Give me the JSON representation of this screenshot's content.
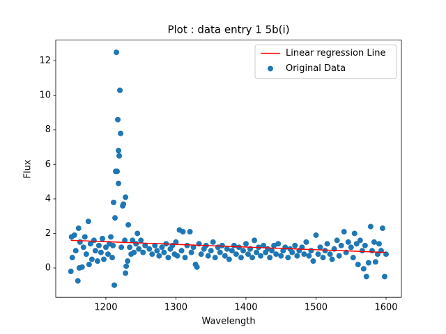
{
  "chart_data": {
    "type": "scatter",
    "title": "Plot : data entry 1 5b(i)",
    "x_label": "Wavelength",
    "y_label": "Flux",
    "xlim": [
      1128.4,
      1621.9
    ],
    "ylim": [
      -1.7,
      13.21
    ],
    "xticks": [
      1200,
      1300,
      1400,
      1500,
      1600
    ],
    "yticks": [
      0,
      2,
      4,
      6,
      8,
      10,
      12
    ],
    "legend": "upper right",
    "series": [
      {
        "name": "Linear regression Line",
        "type": "line",
        "color": "red",
        "x": [
          1150,
          1600
        ],
        "values": [
          1.6,
          0.9
        ]
      },
      {
        "name": "Original Data",
        "type": "scatter",
        "color": "#1f77b4",
        "x": [
          1150,
          1151,
          1152,
          1155,
          1157,
          1160,
          1161,
          1162,
          1163,
          1166,
          1168,
          1170,
          1172,
          1175,
          1176,
          1178,
          1180,
          1183,
          1185,
          1188,
          1190,
          1193,
          1195,
          1197,
          1200,
          1203,
          1205,
          1207,
          1209,
          1210,
          1211,
          1212,
          1213,
          1214,
          1215,
          1216,
          1217,
          1218,
          1219,
          1218,
          1220,
          1221,
          1222,
          1224,
          1225,
          1227,
          1228,
          1228,
          1229,
          1231,
          1232,
          1234,
          1236,
          1238,
          1240,
          1243,
          1245,
          1247,
          1250,
          1253,
          1256,
          1262,
          1266,
          1270,
          1273,
          1276,
          1280,
          1283,
          1286,
          1289,
          1292,
          1295,
          1298,
          1300,
          1302,
          1305,
          1308,
          1310,
          1313,
          1316,
          1320,
          1322,
          1325,
          1328,
          1330,
          1333,
          1336,
          1340,
          1343,
          1346,
          1350,
          1353,
          1356,
          1360,
          1363,
          1366,
          1370,
          1373,
          1376,
          1380,
          1383,
          1386,
          1390,
          1393,
          1396,
          1400,
          1403,
          1406,
          1409,
          1412,
          1415,
          1418,
          1421,
          1425,
          1428,
          1431,
          1434,
          1437,
          1440,
          1443,
          1446,
          1450,
          1453,
          1456,
          1460,
          1463,
          1466,
          1470,
          1473,
          1476,
          1480,
          1483,
          1486,
          1490,
          1493,
          1496,
          1500,
          1503,
          1506,
          1510,
          1513,
          1516,
          1520,
          1523,
          1526,
          1530,
          1533,
          1536,
          1540,
          1543,
          1546,
          1550,
          1553,
          1555,
          1558,
          1560,
          1563,
          1566,
          1568,
          1570,
          1572,
          1575,
          1578,
          1580,
          1583,
          1585,
          1588,
          1590,
          1593,
          1595,
          1598,
          1600
        ],
        "values": [
          -0.2,
          1.8,
          0.6,
          1.9,
          1.0,
          -0.75,
          2.3,
          0.0,
          1.5,
          0.05,
          1.2,
          1.8,
          0.8,
          2.7,
          0.2,
          1.4,
          0.5,
          1.6,
          1.0,
          0.4,
          1.3,
          0.9,
          1.7,
          0.5,
          1.2,
          0.8,
          1.4,
          1.8,
          0.6,
          1.3,
          3.8,
          -1.0,
          2.9,
          5.6,
          12.5,
          5.6,
          8.6,
          6.8,
          6.5,
          4.9,
          10.3,
          7.8,
          1.2,
          3.6,
          3.7,
          1.6,
          4.1,
          -0.3,
          0.1,
          0.4,
          2.5,
          1.2,
          0.8,
          1.6,
          0.9,
          1.4,
          2.0,
          1.1,
          1.6,
          0.9,
          1.3,
          1.1,
          0.8,
          1.3,
          1.0,
          0.7,
          1.2,
          0.9,
          1.4,
          0.6,
          1.1,
          1.3,
          0.8,
          1.5,
          0.7,
          2.2,
          1.0,
          2.1,
          0.6,
          1.3,
          2.1,
          0.9,
          1.2,
          0.2,
          0.05,
          1.4,
          0.8,
          1.1,
          1.3,
          0.7,
          1.0,
          1.5,
          0.6,
          1.2,
          0.9,
          1.3,
          0.7,
          1.1,
          0.5,
          1.0,
          1.3,
          0.8,
          1.2,
          0.6,
          1.0,
          1.4,
          0.8,
          1.1,
          0.6,
          1.6,
          0.9,
          1.2,
          0.7,
          1.3,
          0.9,
          1.1,
          0.6,
          1.0,
          1.3,
          0.8,
          1.4,
          0.7,
          1.0,
          1.2,
          0.6,
          1.1,
          0.9,
          1.3,
          0.7,
          1.0,
          1.2,
          0.8,
          1.5,
          0.7,
          1.0,
          0.4,
          1.9,
          0.8,
          1.2,
          0.6,
          1.0,
          1.4,
          0.8,
          0.5,
          1.1,
          1.6,
          0.7,
          1.3,
          2.1,
          0.9,
          1.5,
          1.2,
          0.6,
          2.0,
          1.4,
          0.2,
          1.6,
          1.0,
          -0.05,
          1.3,
          -0.5,
          0.3,
          2.4,
          1.0,
          1.5,
          0.35,
          0.8,
          1.4,
          1.0,
          2.3,
          -0.5,
          0.8
        ]
      }
    ]
  }
}
